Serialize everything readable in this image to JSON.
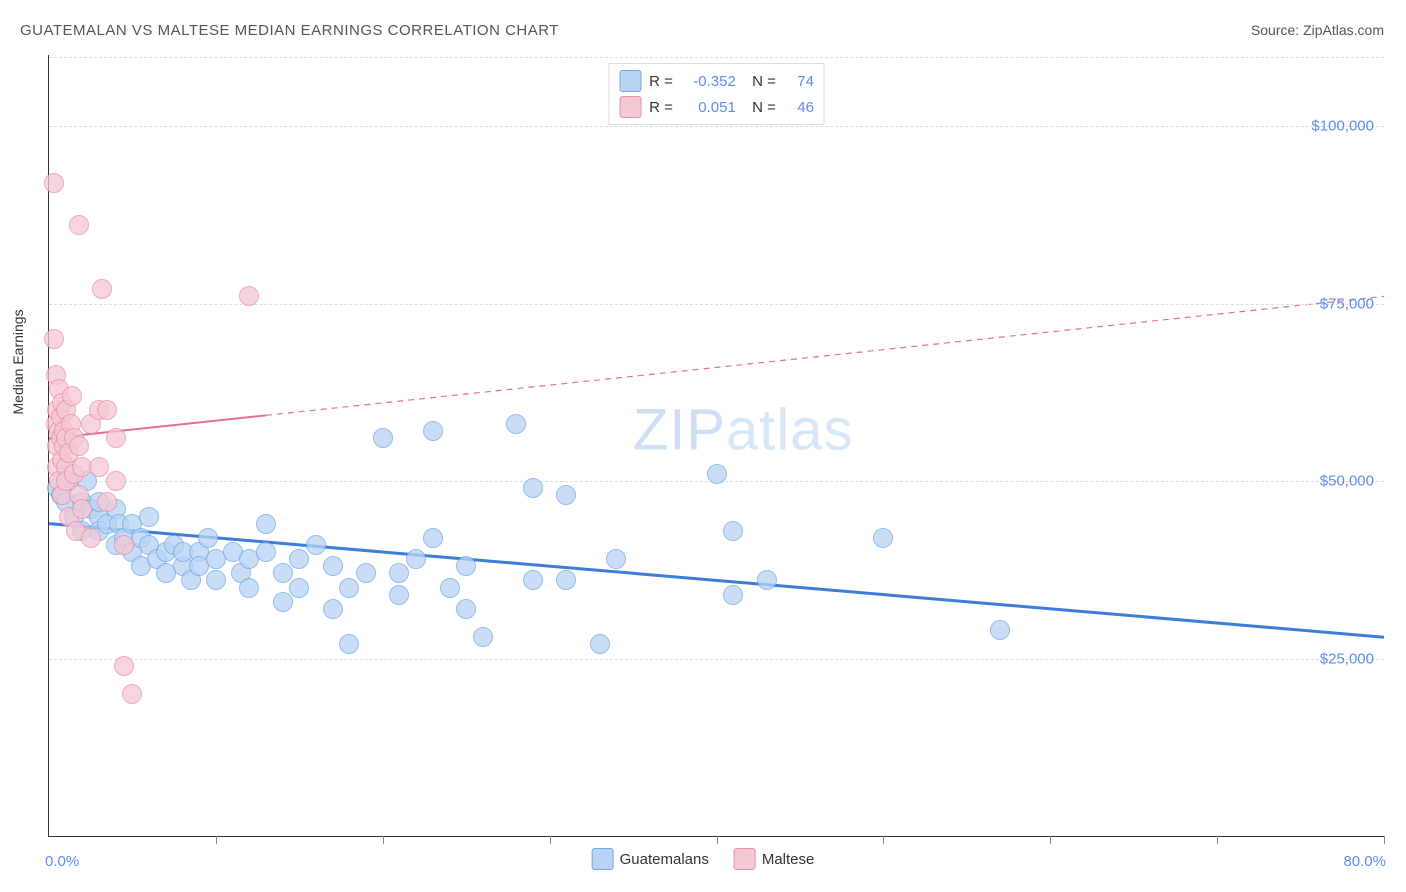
{
  "title": "GUATEMALAN VS MALTESE MEDIAN EARNINGS CORRELATION CHART",
  "source": "Source: ZipAtlas.com",
  "watermark": "ZIPatlas",
  "yaxis_title": "Median Earnings",
  "chart": {
    "type": "scatter",
    "xlim": [
      0,
      80
    ],
    "ylim": [
      0,
      110000
    ],
    "x_tick_positions": [
      0,
      10,
      20,
      30,
      40,
      50,
      60,
      70,
      80
    ],
    "x_label_min": "0.0%",
    "x_label_max": "80.0%",
    "y_gridlines": [
      25000,
      50000,
      75000,
      100000
    ],
    "y_labels": [
      "$25,000",
      "$50,000",
      "$75,000",
      "$100,000"
    ],
    "grid_color": "#dddddd",
    "axis_color": "#333333",
    "label_color": "#5b8def",
    "background_color": "#ffffff",
    "point_radius": 9
  },
  "series": [
    {
      "name": "Guatemalans",
      "fill": "#b7d4f4",
      "stroke": "#6fa8e8",
      "opacity": 0.75,
      "R": "-0.352",
      "N": "74",
      "trend": {
        "color": "#3b7dd8",
        "width": 3,
        "y_at_x0": 44000,
        "y_at_x80": 28000,
        "solid_until_x": 80
      },
      "points": [
        [
          0.5,
          49000
        ],
        [
          0.7,
          48000
        ],
        [
          1,
          47000
        ],
        [
          1.2,
          50000
        ],
        [
          1.5,
          45000
        ],
        [
          2,
          43000
        ],
        [
          2,
          47000
        ],
        [
          2.3,
          50000
        ],
        [
          2.5,
          46000
        ],
        [
          3,
          45000
        ],
        [
          3,
          43000
        ],
        [
          3,
          47000
        ],
        [
          3.5,
          44000
        ],
        [
          4,
          46000
        ],
        [
          4,
          41000
        ],
        [
          4.2,
          44000
        ],
        [
          4.5,
          42000
        ],
        [
          5,
          40000
        ],
        [
          5,
          44000
        ],
        [
          5.5,
          38000
        ],
        [
          5.5,
          42000
        ],
        [
          6,
          41000
        ],
        [
          6,
          45000
        ],
        [
          6.5,
          39000
        ],
        [
          7,
          40000
        ],
        [
          7,
          37000
        ],
        [
          7.5,
          41000
        ],
        [
          8,
          38000
        ],
        [
          8,
          40000
        ],
        [
          8.5,
          36000
        ],
        [
          9,
          40000
        ],
        [
          9,
          38000
        ],
        [
          9.5,
          42000
        ],
        [
          10,
          39000
        ],
        [
          10,
          36000
        ],
        [
          11,
          40000
        ],
        [
          11.5,
          37000
        ],
        [
          12,
          39000
        ],
        [
          12,
          35000
        ],
        [
          13,
          40000
        ],
        [
          13,
          44000
        ],
        [
          14,
          37000
        ],
        [
          14,
          33000
        ],
        [
          15,
          39000
        ],
        [
          15,
          35000
        ],
        [
          16,
          41000
        ],
        [
          17,
          32000
        ],
        [
          17,
          38000
        ],
        [
          18,
          35000
        ],
        [
          18,
          27000
        ],
        [
          19,
          37000
        ],
        [
          20,
          56000
        ],
        [
          21,
          34000
        ],
        [
          21,
          37000
        ],
        [
          22,
          39000
        ],
        [
          23,
          57000
        ],
        [
          23,
          42000
        ],
        [
          24,
          35000
        ],
        [
          25,
          32000
        ],
        [
          25,
          38000
        ],
        [
          26,
          28000
        ],
        [
          28,
          58000
        ],
        [
          29,
          36000
        ],
        [
          29,
          49000
        ],
        [
          31,
          48000
        ],
        [
          31,
          36000
        ],
        [
          33,
          27000
        ],
        [
          34,
          39000
        ],
        [
          40,
          51000
        ],
        [
          41,
          34000
        ],
        [
          41,
          43000
        ],
        [
          43,
          36000
        ],
        [
          50,
          42000
        ],
        [
          57,
          29000
        ]
      ]
    },
    {
      "name": "Maltese",
      "fill": "#f6c8d4",
      "stroke": "#e88fa8",
      "opacity": 0.75,
      "R": "0.051",
      "N": "46",
      "trend": {
        "color": "#e36f93",
        "width": 2,
        "y_at_x0": 56000,
        "y_at_x80": 76000,
        "solid_until_x": 13
      },
      "points": [
        [
          0.3,
          92000
        ],
        [
          0.3,
          70000
        ],
        [
          0.4,
          65000
        ],
        [
          0.4,
          58000
        ],
        [
          0.5,
          60000
        ],
        [
          0.5,
          55000
        ],
        [
          0.5,
          52000
        ],
        [
          0.6,
          63000
        ],
        [
          0.6,
          57000
        ],
        [
          0.6,
          50000
        ],
        [
          0.7,
          56000
        ],
        [
          0.7,
          59000
        ],
        [
          0.8,
          61000
        ],
        [
          0.8,
          53000
        ],
        [
          0.8,
          48000
        ],
        [
          0.9,
          55000
        ],
        [
          0.9,
          57000
        ],
        [
          1,
          52000
        ],
        [
          1,
          50000
        ],
        [
          1,
          60000
        ],
        [
          1,
          56000
        ],
        [
          1.2,
          54000
        ],
        [
          1.2,
          45000
        ],
        [
          1.3,
          58000
        ],
        [
          1.4,
          62000
        ],
        [
          1.5,
          51000
        ],
        [
          1.5,
          56000
        ],
        [
          1.6,
          43000
        ],
        [
          1.8,
          55000
        ],
        [
          1.8,
          48000
        ],
        [
          1.8,
          86000
        ],
        [
          2,
          52000
        ],
        [
          2,
          46000
        ],
        [
          2.5,
          58000
        ],
        [
          2.5,
          42000
        ],
        [
          3,
          60000
        ],
        [
          3,
          52000
        ],
        [
          3.2,
          77000
        ],
        [
          3.5,
          47000
        ],
        [
          3.5,
          60000
        ],
        [
          4,
          56000
        ],
        [
          4,
          50000
        ],
        [
          4.5,
          24000
        ],
        [
          4.5,
          41000
        ],
        [
          5,
          20000
        ],
        [
          12,
          76000
        ]
      ]
    }
  ],
  "bottom_legend": [
    {
      "label": "Guatemalans",
      "fill": "#b7d4f4",
      "stroke": "#6fa8e8"
    },
    {
      "label": "Maltese",
      "fill": "#f6c8d4",
      "stroke": "#e88fa8"
    }
  ]
}
